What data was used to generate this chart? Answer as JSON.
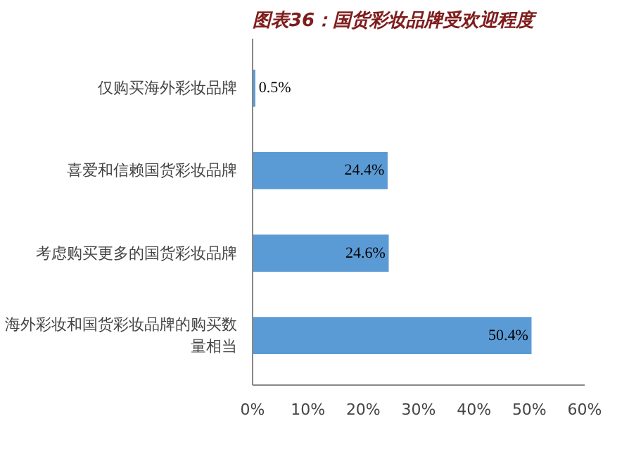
{
  "chart_data": {
    "type": "bar",
    "orientation": "horizontal",
    "title": "图表36：国货彩妆品牌受欢迎程度",
    "categories": [
      "仅购买海外彩妆品牌",
      "喜爱和信赖国货彩妆品牌",
      "考虑购买更多的国货彩妆品牌",
      "海外彩妆和国货彩妆品牌的购买数量相当"
    ],
    "values": [
      0.5,
      24.4,
      24.6,
      50.4
    ],
    "value_labels": [
      "0.5%",
      "24.4%",
      "24.6%",
      "50.4%"
    ],
    "color": "#5b9bd5",
    "xlim": [
      0,
      60
    ],
    "xticks": [
      {
        "value": 0,
        "label": "0%"
      },
      {
        "value": 10,
        "label": "10%"
      },
      {
        "value": 20,
        "label": "20%"
      },
      {
        "value": 30,
        "label": "30%"
      },
      {
        "value": 40,
        "label": "40%"
      },
      {
        "value": 50,
        "label": "50%"
      },
      {
        "value": 60,
        "label": "60%"
      }
    ],
    "grid": false
  }
}
